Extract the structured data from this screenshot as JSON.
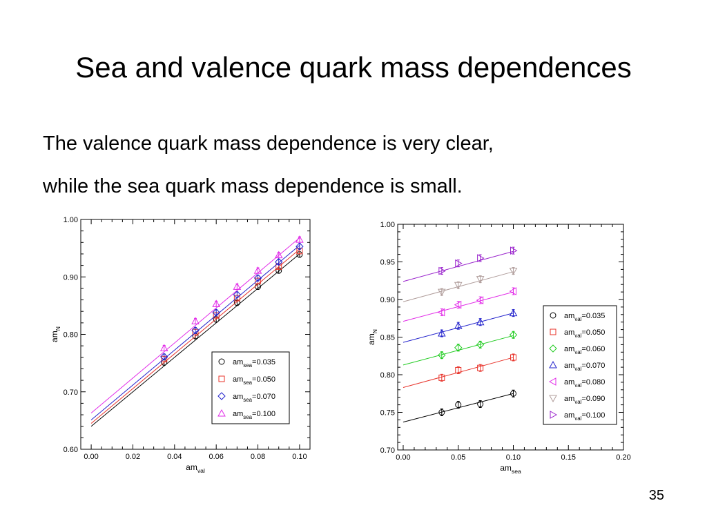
{
  "slide": {
    "title": "Sea and valence quark mass dependences",
    "lines": [
      "The valence quark mass dependence is very clear,",
      "while the sea quark mass dependence is small."
    ],
    "page_number": "35"
  },
  "chart_data": [
    {
      "type": "scatter",
      "xlabel": {
        "main": "am",
        "sub": "val"
      },
      "ylabel": {
        "main": "am",
        "sub": "N"
      },
      "xlim": [
        -0.005,
        0.105
      ],
      "ylim": [
        0.6,
        1.0
      ],
      "xticks": [
        0.0,
        0.02,
        0.04,
        0.06,
        0.08,
        0.1
      ],
      "xtick_labels": [
        "0.00",
        "0.02",
        "0.04",
        "0.06",
        "0.08",
        "0.10"
      ],
      "yticks": [
        0.6,
        0.7,
        0.8,
        0.9,
        1.0
      ],
      "ytick_labels": [
        "0.60",
        "0.70",
        "0.80",
        "0.90",
        "1.00"
      ],
      "grid": false,
      "legend_position": "bottom-right",
      "x": [
        0.035,
        0.05,
        0.06,
        0.07,
        0.08,
        0.09,
        0.1
      ],
      "series": [
        {
          "name_main": "am",
          "name_sub": "sea",
          "name_value": "=0.035",
          "color": "#000000",
          "marker": "circle",
          "values": [
            0.751,
            0.797,
            0.826,
            0.855,
            0.883,
            0.911,
            0.939
          ],
          "fit": [
            0.64,
            3.0
          ]
        },
        {
          "name_main": "am",
          "name_sub": "sea",
          "name_value": "=0.050",
          "color": "#e8332a",
          "marker": "square",
          "values": [
            0.757,
            0.804,
            0.833,
            0.863,
            0.893,
            0.918,
            0.945
          ],
          "fit": [
            0.645,
            3.03
          ]
        },
        {
          "name_main": "am",
          "name_sub": "sea",
          "name_value": "=0.070",
          "color": "#2222cc",
          "marker": "diamond",
          "values": [
            0.761,
            0.807,
            0.838,
            0.869,
            0.898,
            0.926,
            0.953
          ],
          "fit": [
            0.651,
            3.04
          ]
        },
        {
          "name_main": "am",
          "name_sub": "sea",
          "name_value": "=0.100",
          "color": "#e22be8",
          "marker": "triangle-up",
          "values": [
            0.776,
            0.823,
            0.853,
            0.883,
            0.911,
            0.938,
            0.965
          ],
          "fit": [
            0.663,
            3.05
          ]
        }
      ]
    },
    {
      "type": "scatter",
      "xlabel": {
        "main": "am",
        "sub": "sea"
      },
      "ylabel": {
        "main": "am",
        "sub": "N"
      },
      "xlim": [
        -0.005,
        0.2
      ],
      "ylim": [
        0.7,
        1.0
      ],
      "xticks": [
        0.0,
        0.05,
        0.1,
        0.15,
        0.2
      ],
      "xtick_labels": [
        "0.00",
        "0.05",
        "0.10",
        "0.15",
        "0.20"
      ],
      "yticks": [
        0.7,
        0.75,
        0.8,
        0.85,
        0.9,
        0.95,
        1.0
      ],
      "ytick_labels": [
        "0.70",
        "0.75",
        "0.80",
        "0.85",
        "0.90",
        "0.95",
        "1.00"
      ],
      "grid": false,
      "legend_position": "right",
      "x": [
        0.035,
        0.05,
        0.07,
        0.1
      ],
      "series": [
        {
          "name_main": "am",
          "name_sub": "val",
          "name_value": "=0.035",
          "color": "#000000",
          "marker": "circle",
          "values": [
            0.75,
            0.76,
            0.761,
            0.775
          ],
          "fit": [
            0.737,
            0.38
          ]
        },
        {
          "name_main": "am",
          "name_sub": "val",
          "name_value": "=0.050",
          "color": "#e8332a",
          "marker": "square",
          "values": [
            0.796,
            0.806,
            0.809,
            0.823
          ],
          "fit": [
            0.783,
            0.4
          ]
        },
        {
          "name_main": "am",
          "name_sub": "val",
          "name_value": "=0.060",
          "color": "#22cc22",
          "marker": "diamond",
          "values": [
            0.826,
            0.836,
            0.84,
            0.853
          ],
          "fit": [
            0.813,
            0.39
          ]
        },
        {
          "name_main": "am",
          "name_sub": "val",
          "name_value": "=0.070",
          "color": "#2222cc",
          "marker": "triangle-up",
          "values": [
            0.855,
            0.865,
            0.87,
            0.882
          ],
          "fit": [
            0.843,
            0.39
          ]
        },
        {
          "name_main": "am",
          "name_sub": "val",
          "name_value": "=0.080",
          "color": "#e22be8",
          "marker": "triangle-left",
          "values": [
            0.883,
            0.893,
            0.899,
            0.911
          ],
          "fit": [
            0.871,
            0.39
          ]
        },
        {
          "name_main": "am",
          "name_sub": "val",
          "name_value": "=0.090",
          "color": "#b09d9b",
          "marker": "triangle-down",
          "values": [
            0.91,
            0.919,
            0.927,
            0.938
          ],
          "fit": [
            0.897,
            0.4
          ]
        },
        {
          "name_main": "am",
          "name_sub": "val",
          "name_value": "=0.100",
          "color": "#9922cc",
          "marker": "triangle-right",
          "values": [
            0.938,
            0.948,
            0.955,
            0.965
          ],
          "fit": [
            0.924,
            0.4
          ]
        }
      ]
    }
  ]
}
